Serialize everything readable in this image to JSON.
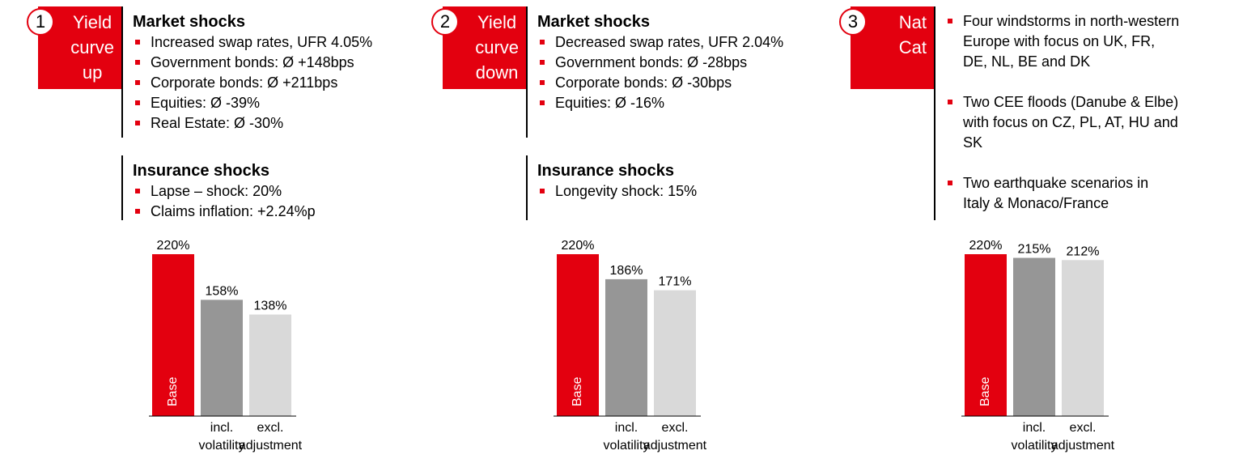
{
  "colors": {
    "accent": "#e3000f",
    "incl_bar": "#969696",
    "excl_bar": "#d9d9d9"
  },
  "scenarios": [
    {
      "number": "1",
      "label": "Yield\ncurve\nup",
      "market_title": "Market shocks",
      "market_items": [
        "Increased swap rates, UFR 4.05%",
        "Government bonds: Ø +148bps",
        "Corporate bonds: Ø +211bps",
        "Equities: Ø -39%",
        "Real Estate: Ø -30%"
      ],
      "insurance_title": "Insurance shocks",
      "insurance_items": [
        "Lapse – shock: 20%",
        "Claims inflation: +2.24%p"
      ]
    },
    {
      "number": "2",
      "label": "Yield\ncurve\ndown",
      "market_title": "Market shocks",
      "market_items": [
        "Decreased swap rates, UFR 2.04%",
        "Government bonds: Ø -28bps",
        "Corporate bonds: Ø -30bps",
        "Equities: Ø -16%"
      ],
      "insurance_title": "Insurance shocks",
      "insurance_items": [
        "Longevity shock: 15%"
      ]
    },
    {
      "number": "3",
      "label": "Nat\nCat",
      "items": [
        "Four windstorms in north-western\nEurope with focus on UK, FR,\nDE, NL, BE and DK",
        "Two CEE floods (Danube & Elbe)\nwith focus on CZ, PL, AT, HU and\nSK",
        "Two earthquake scenarios in\nItaly & Monaco/France"
      ]
    }
  ],
  "chart_data": [
    {
      "type": "bar",
      "categories": [
        "Base",
        "incl.\nvolatility",
        "excl.\nadjustment"
      ],
      "values": [
        220,
        158,
        138
      ],
      "value_labels": [
        "220%",
        "158%",
        "138%"
      ],
      "ylim": [
        0,
        220
      ]
    },
    {
      "type": "bar",
      "categories": [
        "Base",
        "incl.\nvolatility",
        "excl.\nadjustment"
      ],
      "values": [
        220,
        186,
        171
      ],
      "value_labels": [
        "220%",
        "186%",
        "171%"
      ],
      "ylim": [
        0,
        220
      ]
    },
    {
      "type": "bar",
      "categories": [
        "Base",
        "incl.\nvolatility",
        "excl.\nadjustment"
      ],
      "values": [
        220,
        215,
        212
      ],
      "value_labels": [
        "220%",
        "215%",
        "212%"
      ],
      "ylim": [
        0,
        220
      ]
    }
  ]
}
